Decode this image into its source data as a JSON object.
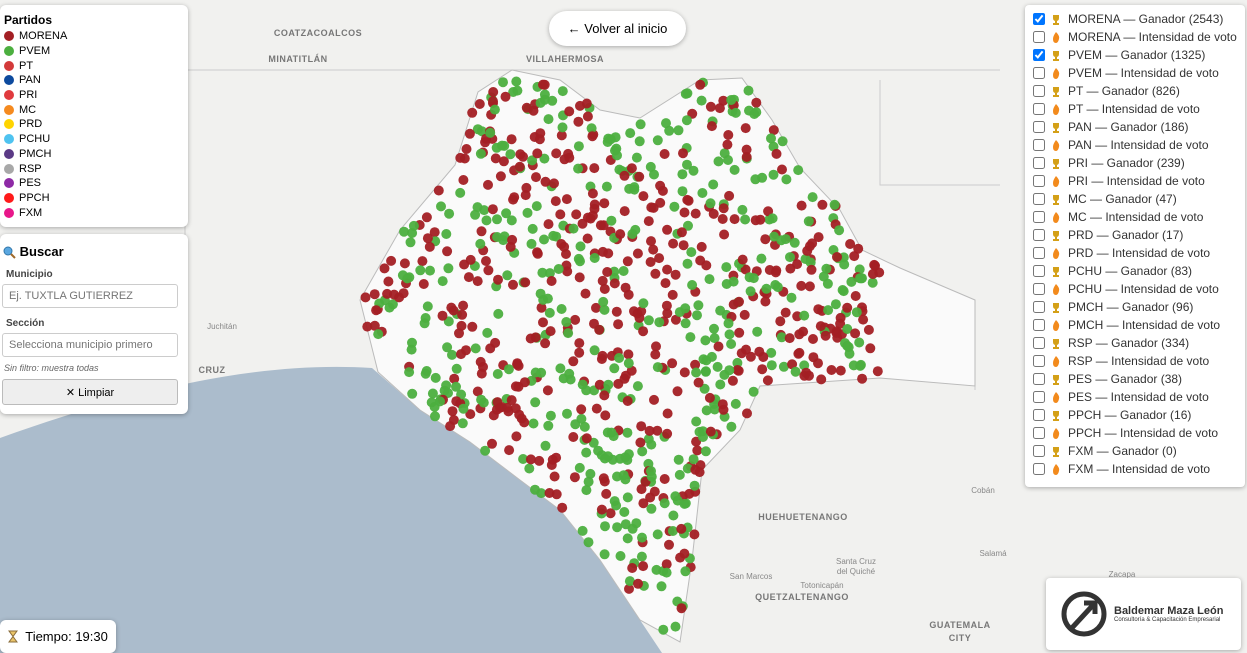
{
  "legend": {
    "title": "Partidos",
    "parties": [
      {
        "name": "MORENA",
        "color": "#a31f24"
      },
      {
        "name": "PVEM",
        "color": "#4caf3f"
      },
      {
        "name": "PT",
        "color": "#d33a3a"
      },
      {
        "name": "PAN",
        "color": "#0d4a9e"
      },
      {
        "name": "PRI",
        "color": "#e03a3e"
      },
      {
        "name": "MC",
        "color": "#f58a1f"
      },
      {
        "name": "PRD",
        "color": "#ffd400"
      },
      {
        "name": "PCHU",
        "color": "#4fc3f0"
      },
      {
        "name": "PMCH",
        "color": "#5b3a86"
      },
      {
        "name": "RSP",
        "color": "#a8a8a8"
      },
      {
        "name": "PES",
        "color": "#8e2aa6"
      },
      {
        "name": "PPCH",
        "color": "#ff1a1a"
      },
      {
        "name": "FXM",
        "color": "#e8178a"
      }
    ]
  },
  "search": {
    "title": "Buscar",
    "municipio_label": "Municipio",
    "municipio_placeholder": "Ej. TUXTLA GUTIERREZ",
    "seccion_label": "Sección",
    "seccion_placeholder": "Selecciona municipio primero",
    "note": "Sin filtro: muestra todas",
    "clear_button": "✕ Limpiar"
  },
  "back_button": "← Volver al inicio",
  "layers": [
    {
      "label": "MORENA — Ganador (2543)",
      "checked": true
    },
    {
      "label": "MORENA — Intensidad de voto",
      "checked": false
    },
    {
      "label": "PVEM — Ganador (1325)",
      "checked": true
    },
    {
      "label": "PVEM — Intensidad de voto",
      "checked": false
    },
    {
      "label": "PT — Ganador (826)",
      "checked": false
    },
    {
      "label": "PT — Intensidad de voto",
      "checked": false
    },
    {
      "label": "PAN — Ganador (186)",
      "checked": false
    },
    {
      "label": "PAN — Intensidad de voto",
      "checked": false
    },
    {
      "label": "PRI — Ganador (239)",
      "checked": false
    },
    {
      "label": "PRI — Intensidad de voto",
      "checked": false
    },
    {
      "label": "MC — Ganador (47)",
      "checked": false
    },
    {
      "label": "MC — Intensidad de voto",
      "checked": false
    },
    {
      "label": "PRD — Ganador (17)",
      "checked": false
    },
    {
      "label": "PRD — Intensidad de voto",
      "checked": false
    },
    {
      "label": "PCHU — Ganador (83)",
      "checked": false
    },
    {
      "label": "PCHU — Intensidad de voto",
      "checked": false
    },
    {
      "label": "PMCH — Ganador (96)",
      "checked": false
    },
    {
      "label": "PMCH — Intensidad de voto",
      "checked": false
    },
    {
      "label": "RSP — Ganador (334)",
      "checked": false
    },
    {
      "label": "RSP — Intensidad de voto",
      "checked": false
    },
    {
      "label": "PES — Ganador (38)",
      "checked": false
    },
    {
      "label": "PES — Intensidad de voto",
      "checked": false
    },
    {
      "label": "PPCH — Ganador (16)",
      "checked": false
    },
    {
      "label": "PPCH — Intensidad de voto",
      "checked": false
    },
    {
      "label": "FXM — Ganador (0)",
      "checked": false
    },
    {
      "label": "FXM — Intensidad de voto",
      "checked": false
    }
  ],
  "timer": "Tiempo: 19:30",
  "logo": {
    "name": "Baldemar Maza León",
    "tagline": "Consultoría & Capacitación Empresarial"
  },
  "map_labels": [
    "COATZACOALCOS",
    "MINATITLÁN",
    "VILLAHERMOSA",
    "Juchitán",
    "CRUZ",
    "HUEHUETENANGO",
    "QUETZALTENANGO",
    "GUATEMALA",
    "CITY",
    "Cobán",
    "Salamá",
    "San Marcos",
    "Santa Cruz",
    "del Quiché",
    "Totonicapán",
    "Zacapa"
  ]
}
